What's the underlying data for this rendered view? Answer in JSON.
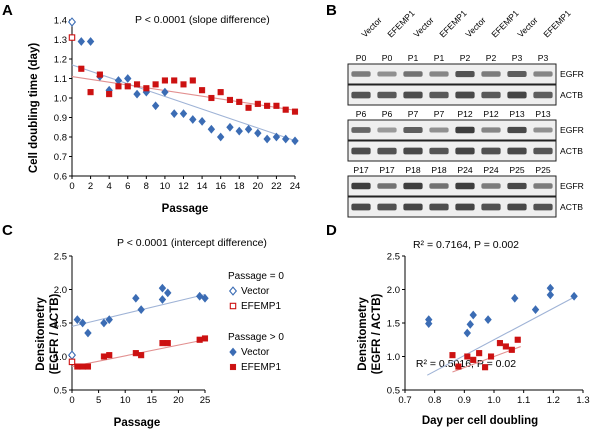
{
  "colors": {
    "vector": "#3b6cb4",
    "efemp1": "#cc1111",
    "fitVector": "#9fb3d6",
    "fitEfemp1": "#e29090"
  },
  "panels": {
    "A": {
      "label": "A"
    },
    "B": {
      "label": "B"
    },
    "C": {
      "label": "C"
    },
    "D": {
      "label": "D"
    }
  },
  "chart_data": [
    {
      "panel": "A",
      "type": "scatter",
      "title": "",
      "annotation": "P < 0.0001 (slope difference)",
      "xlabel": "Passage",
      "ylabel": "Cell doubling time (day)",
      "xlim": [
        0,
        24
      ],
      "ylim": [
        0.6,
        1.4
      ],
      "xticks": [
        0,
        2,
        4,
        6,
        8,
        10,
        12,
        14,
        16,
        18,
        20,
        22,
        24
      ],
      "yticks": [
        0.6,
        0.7,
        0.8,
        0.9,
        1.0,
        1.1,
        1.2,
        1.3,
        1.4
      ],
      "series": [
        {
          "name": "Vector (passage 0)",
          "marker": "diamond-open",
          "color": "vector",
          "x": [
            0
          ],
          "y": [
            1.39
          ]
        },
        {
          "name": "EFEMP1 (passage 0)",
          "marker": "square-open",
          "color": "efemp1",
          "x": [
            0
          ],
          "y": [
            1.31
          ]
        },
        {
          "name": "Vector",
          "marker": "diamond",
          "color": "vector",
          "fit": [
            1.17,
            -0.0162
          ],
          "x": [
            1,
            2,
            3,
            4,
            5,
            6,
            7,
            8,
            9,
            10,
            11,
            12,
            13,
            14,
            15,
            16,
            17,
            18,
            19,
            20,
            21,
            22,
            23,
            24
          ],
          "y": [
            1.29,
            1.29,
            1.11,
            1.04,
            1.09,
            1.1,
            1.02,
            1.03,
            0.96,
            1.03,
            0.92,
            0.92,
            0.89,
            0.88,
            0.84,
            0.8,
            0.85,
            0.83,
            0.84,
            0.82,
            0.79,
            0.8,
            0.79,
            0.78
          ]
        },
        {
          "name": "EFEMP1",
          "marker": "square",
          "color": "efemp1",
          "fit": [
            1.11,
            -0.0072
          ],
          "x": [
            1,
            2,
            3,
            4,
            5,
            6,
            7,
            8,
            9,
            10,
            11,
            12,
            13,
            14,
            15,
            16,
            17,
            18,
            19,
            20,
            21,
            22,
            23,
            24
          ],
          "y": [
            1.15,
            1.03,
            1.12,
            1.02,
            1.06,
            1.06,
            1.07,
            1.05,
            1.07,
            1.09,
            1.09,
            1.07,
            1.09,
            1.04,
            1.0,
            1.03,
            0.99,
            0.98,
            0.95,
            0.97,
            0.96,
            0.96,
            0.94,
            0.93
          ]
        }
      ]
    },
    {
      "panel": "B",
      "type": "blot",
      "rows": [
        {
          "lanes": [
            {
              "label": "Vector",
              "passage": "P0"
            },
            {
              "label": "EFEMP1",
              "passage": "P0"
            },
            {
              "label": "Vector",
              "passage": "P1"
            },
            {
              "label": "EFEMP1",
              "passage": "P1"
            },
            {
              "label": "Vector",
              "passage": "P2"
            },
            {
              "label": "EFEMP1",
              "passage": "P2"
            },
            {
              "label": "Vector",
              "passage": "P3"
            },
            {
              "label": "EFEMP1",
              "passage": "P3"
            }
          ],
          "egfr": [
            0.55,
            0.45,
            0.6,
            0.5,
            0.75,
            0.55,
            0.7,
            0.5
          ],
          "actb": [
            0.75,
            0.72,
            0.78,
            0.72,
            0.8,
            0.72,
            0.82,
            0.7
          ]
        },
        {
          "lanes": [
            {
              "passage": "P6"
            },
            {
              "passage": "P6"
            },
            {
              "passage": "P7"
            },
            {
              "passage": "P7"
            },
            {
              "passage": "P12"
            },
            {
              "passage": "P12"
            },
            {
              "passage": "P13"
            },
            {
              "passage": "P13"
            }
          ],
          "egfr": [
            0.65,
            0.4,
            0.7,
            0.45,
            0.85,
            0.5,
            0.8,
            0.45
          ],
          "actb": [
            0.78,
            0.75,
            0.8,
            0.74,
            0.82,
            0.76,
            0.8,
            0.74
          ]
        },
        {
          "lanes": [
            {
              "passage": "P17"
            },
            {
              "passage": "P17"
            },
            {
              "passage": "P18"
            },
            {
              "passage": "P18"
            },
            {
              "passage": "P24"
            },
            {
              "passage": "P24"
            },
            {
              "passage": "P25"
            },
            {
              "passage": "P25"
            }
          ],
          "egfr": [
            0.85,
            0.6,
            0.85,
            0.6,
            0.85,
            0.55,
            0.8,
            0.55
          ],
          "actb": [
            0.8,
            0.76,
            0.82,
            0.78,
            0.82,
            0.76,
            0.8,
            0.75
          ]
        }
      ],
      "bandLabels": [
        "EGFR",
        "ACTB"
      ]
    },
    {
      "panel": "C",
      "type": "scatter",
      "annotation": "P < 0.0001 (intercept difference)",
      "xlabel": "Passage",
      "ylabel": "Densitometry\n(EGFR / ACTB)",
      "xlim": [
        0,
        25
      ],
      "ylim": [
        0.5,
        2.5
      ],
      "xticks": [
        0,
        5,
        10,
        15,
        20,
        25
      ],
      "yticks": [
        0.5,
        1.0,
        1.5,
        2.0,
        2.5
      ],
      "legend": {
        "group0_title": "Passage = 0",
        "group0_vector": "Vector",
        "group0_efemp1": "EFEMP1",
        "group1_title": "Passage > 0",
        "group1_vector": "Vector",
        "group1_efemp1": "EFEMP1"
      },
      "series": [
        {
          "name": "Vector (passage 0)",
          "marker": "diamond-open",
          "color": "vector",
          "x": [
            0
          ],
          "y": [
            1.02
          ]
        },
        {
          "name": "EFEMP1 (passage 0)",
          "marker": "square-open",
          "color": "efemp1",
          "x": [
            0
          ],
          "y": [
            0.92
          ]
        },
        {
          "name": "Vector",
          "marker": "diamond",
          "color": "vector",
          "fit": [
            1.45,
            0.019
          ],
          "x": [
            1,
            2,
            3,
            6,
            7,
            12,
            13,
            17,
            17,
            18,
            24,
            25
          ],
          "y": [
            1.55,
            1.5,
            1.35,
            1.5,
            1.55,
            1.87,
            1.7,
            2.02,
            1.85,
            1.95,
            1.9,
            1.87
          ]
        },
        {
          "name": "EFEMP1",
          "marker": "square",
          "color": "efemp1",
          "fit": [
            0.85,
            0.016
          ],
          "x": [
            1,
            2,
            3,
            6,
            7,
            12,
            13,
            17,
            18,
            24,
            25
          ],
          "y": [
            0.85,
            0.85,
            0.85,
            1.0,
            1.02,
            1.05,
            1.02,
            1.2,
            1.2,
            1.25,
            1.27
          ]
        }
      ]
    },
    {
      "panel": "D",
      "type": "scatter",
      "xlabel": "Day per cell doubling",
      "ylabel": "Densitometry\n(EGFR / ACTB)",
      "xlim": [
        0.7,
        1.3
      ],
      "ylim": [
        0.5,
        2.5
      ],
      "xticks": [
        0.7,
        0.8,
        0.9,
        1.0,
        1.1,
        1.2,
        1.3
      ],
      "yticks": [
        0.5,
        1.0,
        1.5,
        2.0,
        2.5
      ],
      "annotation_vector": "R² = 0.7164, P = 0.002",
      "annotation_efemp1": "R² = 0.5016, P = 0.02",
      "series": [
        {
          "name": "Vector",
          "marker": "diamond",
          "color": "vector",
          "fit": [
            -1.1,
            2.35
          ],
          "x": [
            0.78,
            0.78,
            0.91,
            0.92,
            0.93,
            0.98,
            1.07,
            1.14,
            1.19,
            1.19,
            1.27
          ],
          "y": [
            1.55,
            1.49,
            1.35,
            1.48,
            1.62,
            1.55,
            1.87,
            1.7,
            2.02,
            1.92,
            1.9
          ]
        },
        {
          "name": "EFEMP1",
          "marker": "square",
          "color": "efemp1",
          "fit": [
            -0.65,
            1.65
          ],
          "x": [
            0.86,
            0.88,
            0.91,
            0.93,
            0.95,
            0.97,
            0.99,
            1.02,
            1.04,
            1.06,
            1.08
          ],
          "y": [
            1.02,
            0.85,
            1.0,
            0.95,
            1.05,
            0.84,
            1.0,
            1.2,
            1.15,
            1.1,
            1.25
          ]
        }
      ]
    }
  ]
}
